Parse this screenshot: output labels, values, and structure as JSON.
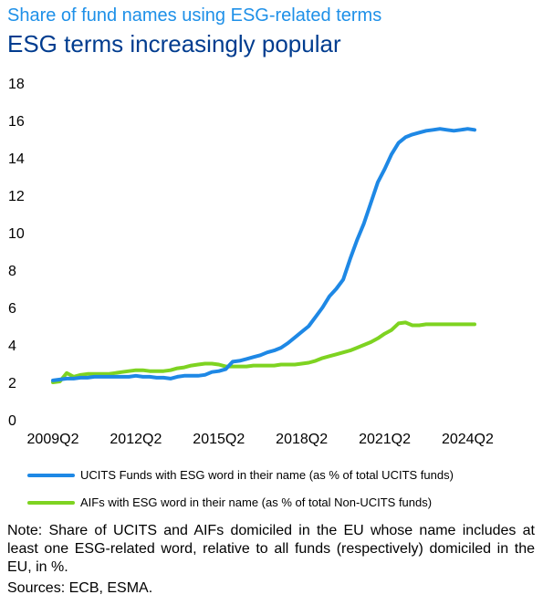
{
  "chart_data": {
    "type": "line",
    "title": "Share of fund names using ESG-related terms",
    "subtitle": "ESG terms increasingly popular",
    "xlabel": "",
    "ylabel": "",
    "x_tick_labels": [
      "2009Q2",
      "2012Q2",
      "2015Q2",
      "2018Q2",
      "2021Q2",
      "2024Q2"
    ],
    "y_ticks": [
      0,
      2,
      4,
      6,
      8,
      10,
      12,
      14,
      16,
      18
    ],
    "ylim": [
      0,
      18
    ],
    "grid": false,
    "legend_position": "bottom",
    "x": [
      "2009Q2",
      "2009Q3",
      "2009Q4",
      "2010Q1",
      "2010Q2",
      "2010Q3",
      "2010Q4",
      "2011Q1",
      "2011Q2",
      "2011Q3",
      "2011Q4",
      "2012Q1",
      "2012Q2",
      "2012Q3",
      "2012Q4",
      "2013Q1",
      "2013Q2",
      "2013Q3",
      "2013Q4",
      "2014Q1",
      "2014Q2",
      "2014Q3",
      "2014Q4",
      "2015Q1",
      "2015Q2",
      "2015Q3",
      "2015Q4",
      "2016Q1",
      "2016Q2",
      "2016Q3",
      "2016Q4",
      "2017Q1",
      "2017Q2",
      "2017Q3",
      "2017Q4",
      "2018Q1",
      "2018Q2",
      "2018Q3",
      "2018Q4",
      "2019Q1",
      "2019Q2",
      "2019Q3",
      "2019Q4",
      "2020Q1",
      "2020Q2",
      "2020Q3",
      "2020Q4",
      "2021Q1",
      "2021Q2",
      "2021Q3",
      "2021Q4",
      "2022Q1",
      "2022Q2",
      "2022Q3",
      "2022Q4",
      "2023Q1",
      "2023Q2",
      "2023Q3",
      "2023Q4",
      "2024Q1",
      "2024Q2",
      "2024Q3"
    ],
    "series": [
      {
        "name": "UCITS Funds with ESG word in their name (as % of total UCITS funds)",
        "color": "#1E88E5",
        "values": [
          2.1,
          2.15,
          2.2,
          2.2,
          2.25,
          2.25,
          2.3,
          2.3,
          2.3,
          2.3,
          2.3,
          2.3,
          2.35,
          2.3,
          2.3,
          2.25,
          2.25,
          2.2,
          2.3,
          2.35,
          2.35,
          2.35,
          2.4,
          2.55,
          2.6,
          2.7,
          3.1,
          3.15,
          3.25,
          3.35,
          3.45,
          3.6,
          3.7,
          3.85,
          4.1,
          4.4,
          4.7,
          5.0,
          5.5,
          6.0,
          6.6,
          7.0,
          7.5,
          8.6,
          9.6,
          10.5,
          11.6,
          12.7,
          13.4,
          14.2,
          14.8,
          15.1,
          15.25,
          15.35,
          15.45,
          15.5,
          15.55,
          15.5,
          15.45,
          15.5,
          15.55,
          15.5
        ]
      },
      {
        "name": "AIFs with ESG word in their name (as % of total Non-UCITS funds)",
        "color": "#7ED321",
        "values": [
          2.0,
          2.05,
          2.5,
          2.3,
          2.4,
          2.45,
          2.45,
          2.45,
          2.45,
          2.5,
          2.55,
          2.6,
          2.65,
          2.65,
          2.6,
          2.6,
          2.6,
          2.65,
          2.75,
          2.8,
          2.9,
          2.95,
          3.0,
          3.0,
          2.95,
          2.85,
          2.85,
          2.85,
          2.85,
          2.9,
          2.9,
          2.9,
          2.9,
          2.95,
          2.95,
          2.95,
          3.0,
          3.05,
          3.15,
          3.3,
          3.4,
          3.5,
          3.6,
          3.7,
          3.85,
          4.0,
          4.15,
          4.35,
          4.6,
          4.8,
          5.15,
          5.2,
          5.05,
          5.05,
          5.1,
          5.1,
          5.1,
          5.1,
          5.1,
          5.1,
          5.1,
          5.1
        ]
      }
    ]
  },
  "note": "Note: Share of  UCITS and AIFs domiciled in the EU whose name includes at least one ESG-related word, relative to all funds (respectively) domiciled in the EU, in %.",
  "sources": "Sources: ECB, ESMA."
}
